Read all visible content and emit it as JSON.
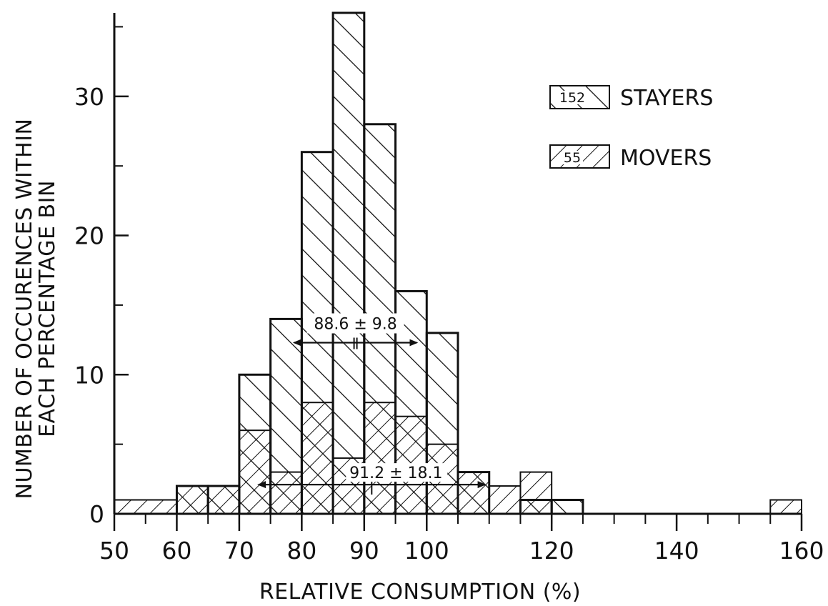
{
  "chart_data": {
    "type": "histogram",
    "xlabel": "RELATIVE CONSUMPTION (%)",
    "ylabel": [
      "NUMBER OF OCCURENCES WITHIN",
      "EACH PERCENTAGE BIN"
    ],
    "xlim": [
      50,
      160
    ],
    "ylim": [
      0,
      36
    ],
    "x_tick_labels": [
      "50",
      "60",
      "70",
      "80",
      "90",
      "100",
      "120",
      "140",
      "160"
    ],
    "y_tick_labels": [
      "0",
      "10",
      "20",
      "30"
    ],
    "x_minor_ticks": [
      55,
      60,
      65,
      70,
      75,
      80,
      85,
      90,
      95,
      100,
      105,
      110,
      115,
      120,
      125,
      130,
      135,
      140,
      145,
      150,
      155
    ],
    "y_minor_ticks": [
      5,
      15,
      25,
      35
    ],
    "legend_position": "top-right",
    "series": [
      {
        "name": "STAYERS",
        "count_label": "152",
        "hatch": "backslash",
        "bins": [
          {
            "x0": 60,
            "x1": 65,
            "y": 2
          },
          {
            "x0": 65,
            "x1": 70,
            "y": 2
          },
          {
            "x0": 70,
            "x1": 75,
            "y": 10
          },
          {
            "x0": 75,
            "x1": 80,
            "y": 14
          },
          {
            "x0": 80,
            "x1": 85,
            "y": 26
          },
          {
            "x0": 85,
            "x1": 90,
            "y": 36
          },
          {
            "x0": 90,
            "x1": 95,
            "y": 28
          },
          {
            "x0": 95,
            "x1": 100,
            "y": 16
          },
          {
            "x0": 100,
            "x1": 105,
            "y": 13
          },
          {
            "x0": 105,
            "x1": 110,
            "y": 3
          },
          {
            "x0": 115,
            "x1": 120,
            "y": 1
          },
          {
            "x0": 120,
            "x1": 125,
            "y": 1
          }
        ],
        "mean_sd_label": "88.6 ± 9.8",
        "mean": 88.6,
        "sd": 9.8
      },
      {
        "name": "MOVERS",
        "count_label": "55",
        "hatch": "slash",
        "bins": [
          {
            "x0": 50,
            "x1": 60,
            "y": 1
          },
          {
            "x0": 60,
            "x1": 65,
            "y": 2
          },
          {
            "x0": 65,
            "x1": 70,
            "y": 2
          },
          {
            "x0": 70,
            "x1": 75,
            "y": 6
          },
          {
            "x0": 75,
            "x1": 80,
            "y": 3
          },
          {
            "x0": 80,
            "x1": 85,
            "y": 8
          },
          {
            "x0": 85,
            "x1": 90,
            "y": 4
          },
          {
            "x0": 90,
            "x1": 95,
            "y": 8
          },
          {
            "x0": 95,
            "x1": 100,
            "y": 7
          },
          {
            "x0": 100,
            "x1": 105,
            "y": 5
          },
          {
            "x0": 105,
            "x1": 110,
            "y": 3
          },
          {
            "x0": 110,
            "x1": 115,
            "y": 2
          },
          {
            "x0": 115,
            "x1": 120,
            "y": 3
          },
          {
            "x0": 155,
            "x1": 160,
            "y": 1
          }
        ],
        "mean_sd_label": "91.2 ± 18.1",
        "mean": 91.2,
        "sd": 18.1
      }
    ]
  }
}
